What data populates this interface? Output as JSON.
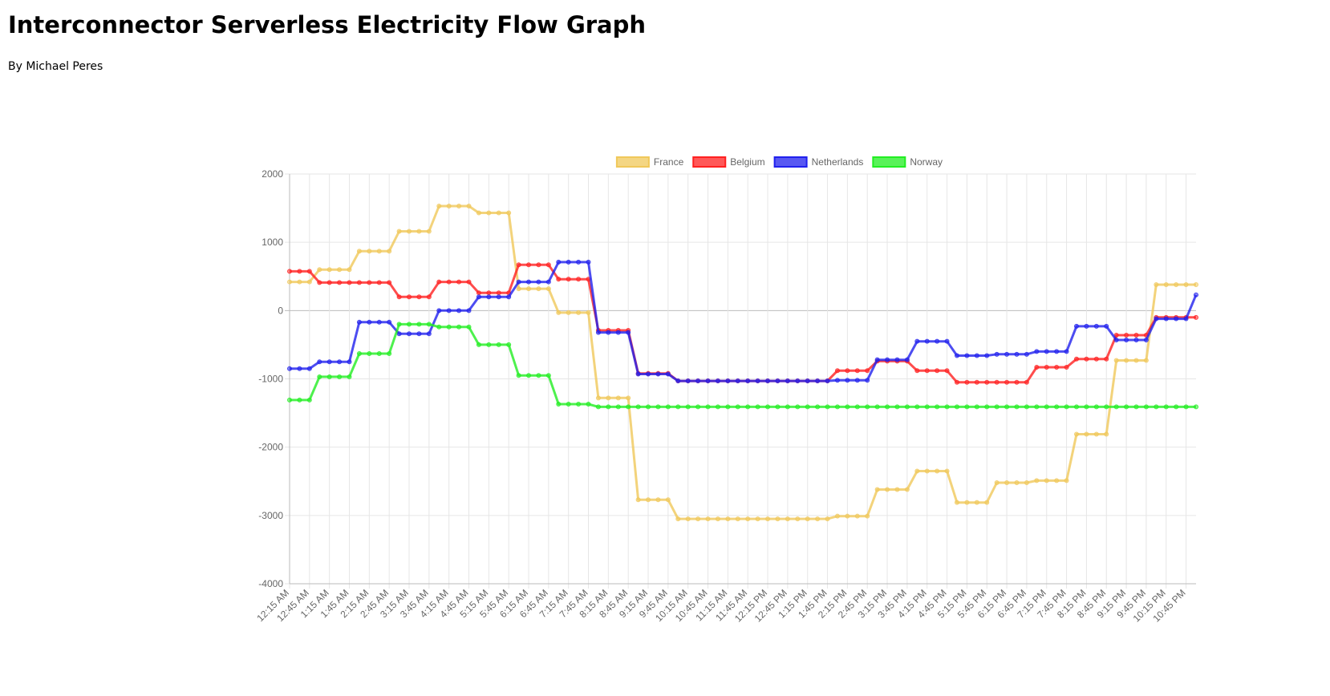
{
  "chart_data": {
    "type": "line",
    "title": "Interconnector Serverless Electricity Flow Graph",
    "subtitle": "By Michael Peres",
    "categories": [
      "12:15 AM",
      null,
      "12:45 AM",
      null,
      "1:15 AM",
      null,
      "1:45 AM",
      null,
      "2:15 AM",
      null,
      "2:45 AM",
      null,
      "3:15 AM",
      null,
      "3:45 AM",
      null,
      "4:15 AM",
      null,
      "4:45 AM",
      null,
      "5:15 AM",
      null,
      "5:45 AM",
      null,
      "6:15 AM",
      null,
      "6:45 AM",
      null,
      "7:15 AM",
      null,
      "7:45 AM",
      null,
      "8:15 AM",
      null,
      "8:45 AM",
      null,
      "9:15 AM",
      null,
      "9:45 AM",
      null,
      "10:15 AM",
      null,
      "10:45 AM",
      null,
      "11:15 AM",
      null,
      "11:45 AM",
      null,
      "12:15 PM",
      null,
      "12:45 PM",
      null,
      "1:15 PM",
      null,
      "1:45 PM",
      null,
      "2:15 PM",
      null,
      "2:45 PM",
      null,
      "3:15 PM",
      null,
      "3:45 PM",
      null,
      "4:15 PM",
      null,
      "4:45 PM",
      null,
      "5:15 PM",
      null,
      "5:45 PM",
      null,
      "6:15 PM",
      null,
      "6:45 PM",
      null,
      "7:15 PM",
      null,
      "7:45 PM",
      null,
      "8:15 PM",
      null,
      "8:45 PM",
      null,
      "9:15 PM",
      null,
      "9:45 PM",
      null,
      "10:15 PM",
      null,
      "10:45 PM",
      null
    ],
    "series": [
      {
        "name": "France",
        "color": "#f0c85a",
        "values": [
          420,
          420,
          420,
          600,
          600,
          600,
          600,
          870,
          870,
          870,
          870,
          1160,
          1160,
          1160,
          1160,
          1530,
          1530,
          1530,
          1530,
          1430,
          1430,
          1430,
          1430,
          320,
          320,
          320,
          320,
          -30,
          -30,
          -30,
          -30,
          -1280,
          -1280,
          -1280,
          -1280,
          -2770,
          -2770,
          -2770,
          -2770,
          -3050,
          -3050,
          -3050,
          -3050,
          -3050,
          -3050,
          -3050,
          -3050,
          -3050,
          -3050,
          -3050,
          -3050,
          -3050,
          -3050,
          -3050,
          -3050,
          -3010,
          -3010,
          -3010,
          -3010,
          -2620,
          -2620,
          -2620,
          -2620,
          -2350,
          -2350,
          -2350,
          -2350,
          -2810,
          -2810,
          -2810,
          -2810,
          -2520,
          -2520,
          -2520,
          -2520,
          -2490,
          -2490,
          -2490,
          -2490,
          -1810,
          -1810,
          -1810,
          -1810,
          -730,
          -730,
          -730,
          -730,
          380,
          380,
          380,
          380,
          380
        ]
      },
      {
        "name": "Belgium",
        "color": "#ff2020",
        "values": [
          575,
          575,
          575,
          410,
          410,
          410,
          410,
          410,
          410,
          410,
          410,
          200,
          200,
          200,
          200,
          420,
          420,
          420,
          420,
          260,
          260,
          260,
          260,
          670,
          670,
          670,
          670,
          460,
          460,
          460,
          460,
          -290,
          -290,
          -290,
          -290,
          -920,
          -920,
          -920,
          -920,
          -1030,
          -1030,
          -1030,
          -1030,
          -1030,
          -1030,
          -1030,
          -1030,
          -1030,
          -1030,
          -1030,
          -1030,
          -1030,
          -1030,
          -1030,
          -1030,
          -880,
          -880,
          -880,
          -880,
          -740,
          -740,
          -740,
          -740,
          -880,
          -880,
          -880,
          -880,
          -1050,
          -1050,
          -1050,
          -1050,
          -1050,
          -1050,
          -1050,
          -1050,
          -830,
          -830,
          -830,
          -830,
          -710,
          -710,
          -710,
          -710,
          -360,
          -360,
          -360,
          -360,
          -100,
          -100,
          -100,
          -100,
          -100
        ]
      },
      {
        "name": "Netherlands",
        "color": "#2020ee",
        "values": [
          -850,
          -850,
          -850,
          -750,
          -750,
          -750,
          -750,
          -170,
          -170,
          -170,
          -170,
          -340,
          -340,
          -340,
          -340,
          0,
          0,
          0,
          0,
          200,
          200,
          200,
          200,
          420,
          420,
          420,
          420,
          710,
          710,
          710,
          710,
          -320,
          -320,
          -320,
          -320,
          -930,
          -930,
          -930,
          -930,
          -1030,
          -1030,
          -1030,
          -1030,
          -1030,
          -1030,
          -1030,
          -1030,
          -1030,
          -1030,
          -1030,
          -1030,
          -1030,
          -1030,
          -1030,
          -1030,
          -1020,
          -1020,
          -1020,
          -1020,
          -720,
          -720,
          -720,
          -720,
          -450,
          -450,
          -450,
          -450,
          -660,
          -660,
          -660,
          -660,
          -640,
          -640,
          -640,
          -640,
          -600,
          -600,
          -600,
          -600,
          -230,
          -230,
          -230,
          -230,
          -430,
          -430,
          -430,
          -430,
          -120,
          -120,
          -120,
          -120,
          230
        ]
      },
      {
        "name": "Norway",
        "color": "#22ee22",
        "values": [
          -1310,
          -1310,
          -1310,
          -970,
          -970,
          -970,
          -970,
          -630,
          -630,
          -630,
          -630,
          -200,
          -200,
          -200,
          -200,
          -240,
          -240,
          -240,
          -240,
          -500,
          -500,
          -500,
          -500,
          -950,
          -950,
          -950,
          -950,
          -1370,
          -1370,
          -1370,
          -1370,
          -1410,
          -1410,
          -1410,
          -1410,
          -1410,
          -1410,
          -1410,
          -1410,
          -1410,
          -1410,
          -1410,
          -1410,
          -1410,
          -1410,
          -1410,
          -1410,
          -1410,
          -1410,
          -1410,
          -1410,
          -1410,
          -1410,
          -1410,
          -1410,
          -1410,
          -1410,
          -1410,
          -1410,
          -1410,
          -1410,
          -1410,
          -1410,
          -1410,
          -1410,
          -1410,
          -1410,
          -1410,
          -1410,
          -1410,
          -1410,
          -1410,
          -1410,
          -1410,
          -1410,
          -1410,
          -1410,
          -1410,
          -1410,
          -1410,
          -1410,
          -1410,
          -1410,
          -1410,
          -1410,
          -1410,
          -1410,
          -1410,
          -1410,
          -1410,
          -1410,
          -1410
        ]
      }
    ],
    "ylim": [
      -4000,
      2000
    ],
    "yticks": [
      2000,
      1000,
      0,
      -1000,
      -2000,
      -3000,
      -4000
    ],
    "grid": true,
    "legend": "top"
  }
}
